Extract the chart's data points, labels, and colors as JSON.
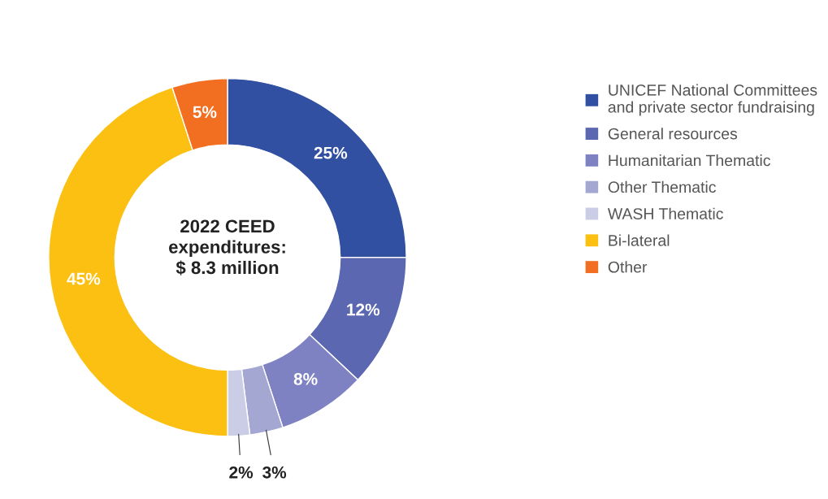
{
  "chart_data": {
    "type": "donut",
    "title": "2022 CEED\nexpenditures:\n$ 8.3 million",
    "categories": [
      "UNICEF National Committees\nand private sector fundraising",
      "General resources",
      "Humanitarian Thematic",
      "Other Thematic",
      "WASH Thematic",
      "Bi-lateral",
      "Other"
    ],
    "values": [
      25,
      12,
      8,
      3,
      2,
      45,
      5
    ],
    "value_labels": [
      "25%",
      "12%",
      "8%",
      "3%",
      "2%",
      "45%",
      "5%"
    ],
    "colors": [
      "#3150a1",
      "#5b67b0",
      "#7e82c2",
      "#a5a7d3",
      "#cbcce6",
      "#fcc012",
      "#f26f22"
    ],
    "legend": "right"
  }
}
